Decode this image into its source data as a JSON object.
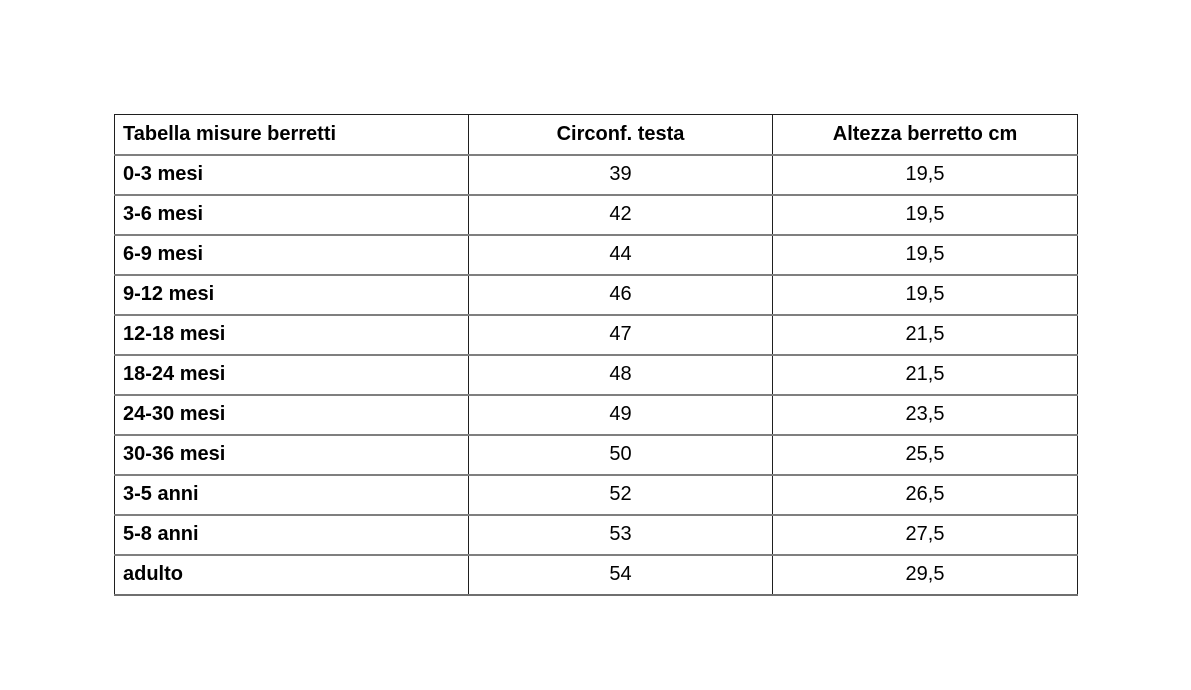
{
  "table": {
    "headers": {
      "title": "Tabella misure berretti",
      "circumference": "Circonf. testa",
      "height": "Altezza berretto cm"
    },
    "rows": [
      {
        "label": "0-3 mesi",
        "circumference": "39",
        "height": "19,5"
      },
      {
        "label": "3-6 mesi",
        "circumference": "42",
        "height": "19,5"
      },
      {
        "label": "6-9 mesi",
        "circumference": "44",
        "height": "19,5"
      },
      {
        "label": "9-12 mesi",
        "circumference": "46",
        "height": "19,5"
      },
      {
        "label": "12-18 mesi",
        "circumference": "47",
        "height": "21,5"
      },
      {
        "label": "18-24 mesi",
        "circumference": "48",
        "height": "21,5"
      },
      {
        "label": "24-30 mesi",
        "circumference": "49",
        "height": "23,5"
      },
      {
        "label": "30-36 mesi",
        "circumference": "50",
        "height": "25,5"
      },
      {
        "label": "3-5 anni",
        "circumference": "52",
        "height": "26,5"
      },
      {
        "label": "5-8 anni",
        "circumference": "53",
        "height": "27,5"
      },
      {
        "label": "adulto",
        "circumference": "54",
        "height": "29,5"
      }
    ]
  }
}
